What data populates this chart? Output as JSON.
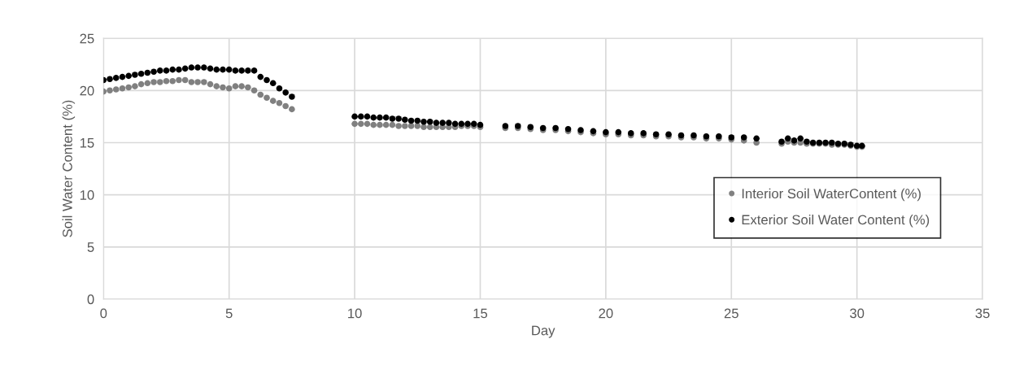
{
  "chart_data": {
    "type": "scatter",
    "xlabel": "Day",
    "ylabel": "Soil Water Content (%)",
    "x": [
      0,
      0.25,
      0.5,
      0.75,
      1,
      1.25,
      1.5,
      1.75,
      2,
      2.25,
      2.5,
      2.75,
      3,
      3.25,
      3.5,
      3.75,
      4,
      4.25,
      4.5,
      4.75,
      5,
      5.25,
      5.5,
      5.75,
      6,
      6.25,
      6.5,
      6.75,
      7,
      7.25,
      7.5,
      10,
      10.25,
      10.5,
      10.75,
      11,
      11.25,
      11.5,
      11.75,
      12,
      12.25,
      12.5,
      12.75,
      13,
      13.25,
      13.5,
      13.75,
      14,
      14.25,
      14.5,
      14.75,
      15,
      16,
      16.5,
      17,
      17.5,
      18,
      18.5,
      19,
      19.5,
      20,
      20.5,
      21,
      21.5,
      22,
      22.5,
      23,
      23.5,
      24,
      24.5,
      25,
      25.5,
      26,
      27,
      27.25,
      27.5,
      27.75,
      28,
      28.25,
      28.5,
      28.75,
      29,
      29.25,
      29.5,
      29.75,
      30,
      30.2
    ],
    "series": [
      {
        "name": "Interior Soil WaterContent (%)",
        "color": "#808080",
        "values": [
          19.9,
          20.0,
          20.1,
          20.2,
          20.3,
          20.4,
          20.6,
          20.7,
          20.8,
          20.8,
          20.9,
          20.9,
          21.0,
          21.0,
          20.8,
          20.8,
          20.8,
          20.6,
          20.4,
          20.3,
          20.2,
          20.4,
          20.4,
          20.3,
          20.0,
          19.6,
          19.3,
          19.0,
          18.8,
          18.5,
          18.2,
          16.8,
          16.8,
          16.8,
          16.7,
          16.7,
          16.7,
          16.7,
          16.6,
          16.6,
          16.6,
          16.6,
          16.5,
          16.5,
          16.5,
          16.5,
          16.5,
          16.5,
          16.6,
          16.6,
          16.6,
          16.5,
          16.4,
          16.4,
          16.3,
          16.2,
          16.2,
          16.1,
          16.0,
          15.9,
          15.8,
          15.8,
          15.7,
          15.7,
          15.6,
          15.6,
          15.5,
          15.5,
          15.4,
          15.4,
          15.3,
          15.2,
          15.0,
          14.9,
          15.1,
          15.0,
          15.0,
          14.9,
          14.9,
          14.9,
          14.9,
          14.8,
          14.8,
          14.8,
          14.7,
          14.6,
          14.6
        ]
      },
      {
        "name": "Exterior Soil Water Content (%)",
        "color": "#000000",
        "values": [
          21.0,
          21.1,
          21.2,
          21.3,
          21.4,
          21.5,
          21.6,
          21.7,
          21.8,
          21.9,
          21.9,
          22.0,
          22.0,
          22.1,
          22.2,
          22.2,
          22.2,
          22.1,
          22.0,
          22.0,
          22.0,
          21.9,
          21.9,
          21.9,
          21.9,
          21.3,
          21.0,
          20.7,
          20.2,
          19.8,
          19.4,
          17.5,
          17.5,
          17.5,
          17.4,
          17.4,
          17.4,
          17.3,
          17.3,
          17.2,
          17.1,
          17.1,
          17.0,
          17.0,
          16.9,
          16.9,
          16.9,
          16.8,
          16.8,
          16.8,
          16.8,
          16.7,
          16.6,
          16.6,
          16.5,
          16.4,
          16.4,
          16.3,
          16.2,
          16.1,
          16.0,
          16.0,
          15.9,
          15.9,
          15.8,
          15.8,
          15.7,
          15.7,
          15.6,
          15.6,
          15.5,
          15.5,
          15.4,
          15.1,
          15.4,
          15.2,
          15.4,
          15.1,
          15.0,
          15.0,
          15.0,
          15.0,
          14.9,
          14.9,
          14.8,
          14.7,
          14.7
        ]
      }
    ],
    "xlim": [
      0,
      35
    ],
    "xticks": [
      0,
      5,
      10,
      15,
      20,
      25,
      30,
      35
    ],
    "ylim": [
      0,
      25
    ],
    "yticks": [
      0,
      5,
      10,
      15,
      20,
      25
    ],
    "grid": true,
    "legend": "center right",
    "marker": "circle"
  }
}
